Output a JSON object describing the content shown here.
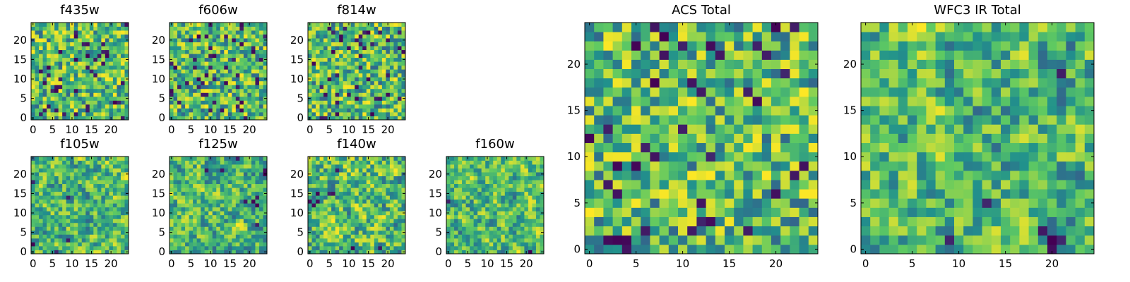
{
  "chart_data": [
    {
      "type": "heatmap",
      "title": "f435w",
      "size": 25,
      "seed": 11,
      "smooth": 0,
      "xticks": [
        0,
        5,
        10,
        15,
        20
      ],
      "yticks": [
        0,
        5,
        10,
        15,
        20
      ],
      "colormap": "viridis",
      "grid": false
    },
    {
      "type": "heatmap",
      "title": "f606w",
      "size": 25,
      "seed": 23,
      "smooth": 0,
      "xticks": [
        0,
        5,
        10,
        15,
        20
      ],
      "yticks": [
        0,
        5,
        10,
        15,
        20
      ],
      "colormap": "viridis",
      "grid": false
    },
    {
      "type": "heatmap",
      "title": "f814w",
      "size": 25,
      "seed": 37,
      "smooth": 0,
      "xticks": [
        0,
        5,
        10,
        15,
        20
      ],
      "yticks": [
        0,
        5,
        10,
        15,
        20
      ],
      "colormap": "viridis",
      "grid": false
    },
    {
      "type": "heatmap",
      "title": "f105w",
      "size": 25,
      "seed": 41,
      "smooth": 1,
      "xticks": [
        0,
        5,
        10,
        15,
        20
      ],
      "yticks": [
        0,
        5,
        10,
        15,
        20
      ],
      "colormap": "viridis",
      "grid": false
    },
    {
      "type": "heatmap",
      "title": "f125w",
      "size": 25,
      "seed": 53,
      "smooth": 1,
      "xticks": [
        0,
        5,
        10,
        15,
        20
      ],
      "yticks": [
        0,
        5,
        10,
        15,
        20
      ],
      "colormap": "viridis",
      "grid": false
    },
    {
      "type": "heatmap",
      "title": "f140w",
      "size": 25,
      "seed": 67,
      "smooth": 1,
      "xticks": [
        0,
        5,
        10,
        15,
        20
      ],
      "yticks": [
        0,
        5,
        10,
        15,
        20
      ],
      "colormap": "viridis",
      "grid": false
    },
    {
      "type": "heatmap",
      "title": "f160w",
      "size": 25,
      "seed": 79,
      "smooth": 1,
      "xticks": [
        0,
        5,
        10,
        15,
        20
      ],
      "yticks": [
        0,
        5,
        10,
        15,
        20
      ],
      "colormap": "viridis",
      "grid": false
    },
    {
      "type": "heatmap",
      "title": "ACS Total",
      "size": 25,
      "seed": 97,
      "smooth": 0,
      "xticks": [
        0,
        5,
        10,
        15,
        20
      ],
      "yticks": [
        0,
        5,
        10,
        15,
        20
      ],
      "colormap": "viridis",
      "grid": false
    },
    {
      "type": "heatmap",
      "title": "WFC3 IR Total",
      "size": 25,
      "seed": 131,
      "smooth": 1,
      "xticks": [
        0,
        5,
        10,
        15,
        20
      ],
      "yticks": [
        0,
        5,
        10,
        15,
        20
      ],
      "colormap": "viridis",
      "grid": false
    }
  ],
  "colors": {
    "viridis": [
      "#440154",
      "#3b528b",
      "#21918c",
      "#5ec962",
      "#fde725"
    ],
    "axis": "#000000",
    "background": "#ffffff"
  }
}
